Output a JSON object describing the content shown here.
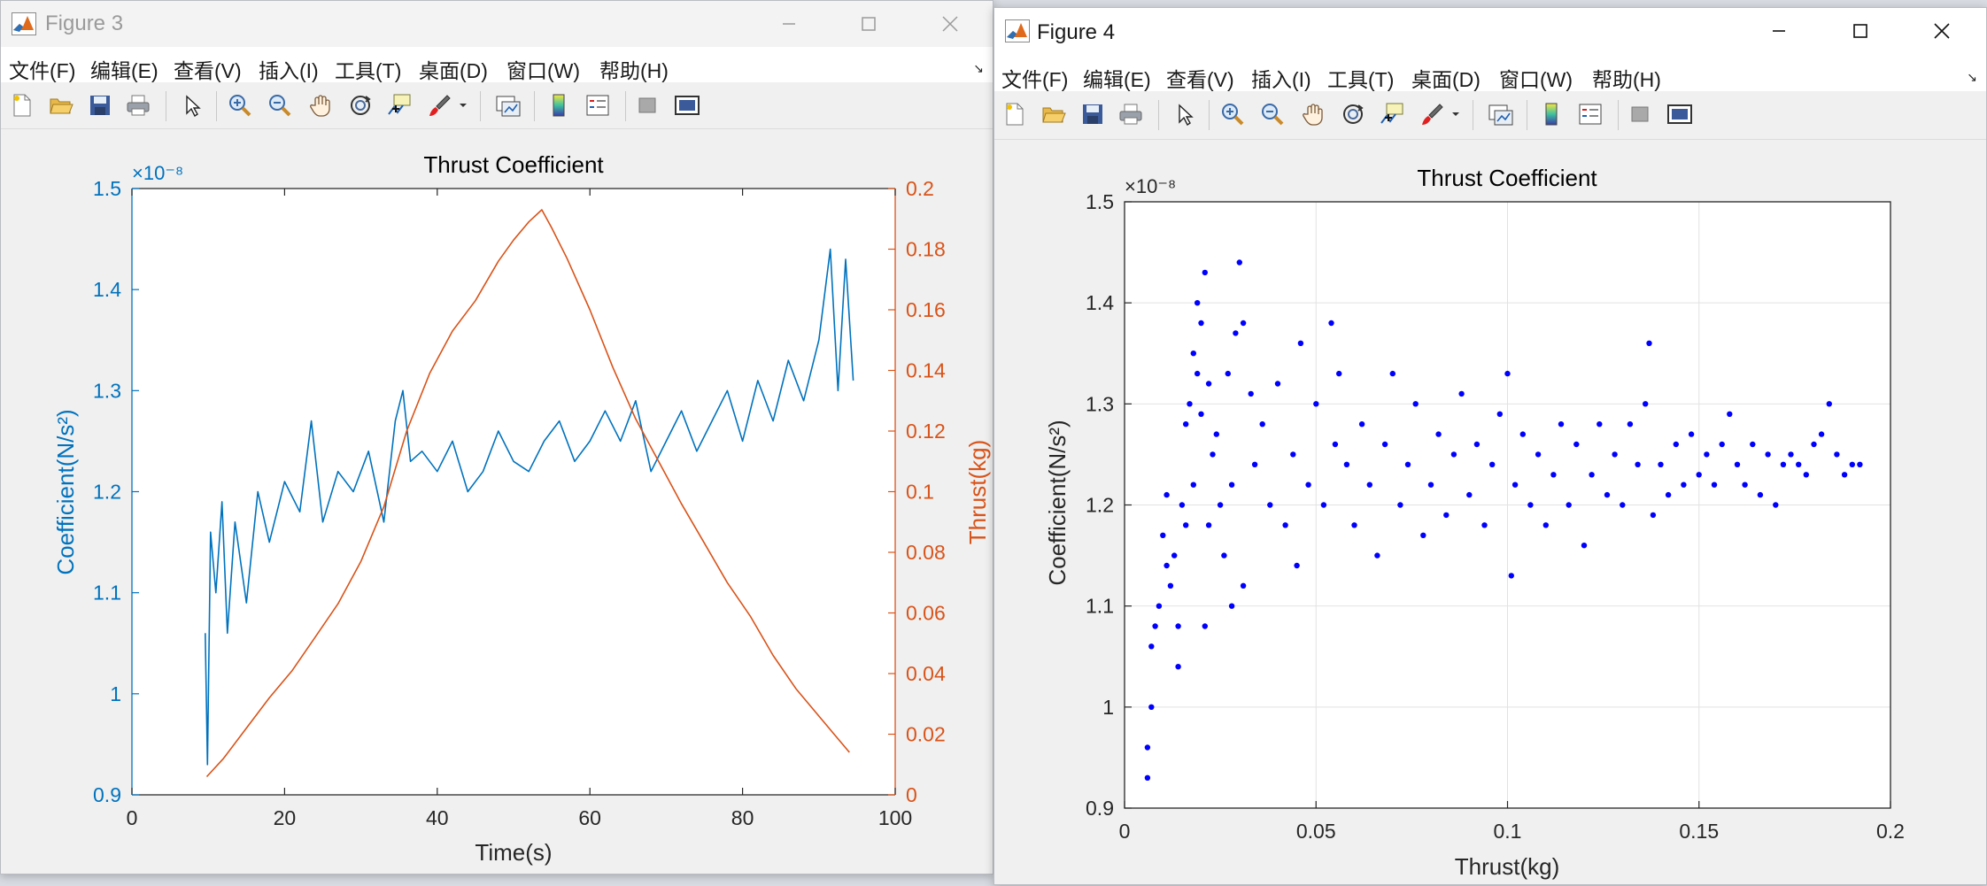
{
  "windows": [
    {
      "title": "Figure 3",
      "menu": [
        "文件(F)",
        "编辑(E)",
        "查看(V)",
        "插入(I)",
        "工具(T)",
        "桌面(D)",
        "窗口(W)",
        "帮助(H)"
      ],
      "toolbar_icons": [
        "new-figure-icon",
        "open-file-icon",
        "save-icon",
        "print-icon",
        "pointer-icon",
        "zoom-in-icon",
        "zoom-out-icon",
        "pan-hand-icon",
        "rotate-3d-icon",
        "data-cursor-icon",
        "brush-icon",
        "link-plot-icon",
        "colorbar-icon",
        "legend-icon",
        "hide-plot-tools-icon",
        "show-plot-tools-icon"
      ],
      "colors": {
        "left_axis": "#0072BD",
        "right_axis": "#D95319"
      }
    },
    {
      "title": "Figure 4",
      "menu": [
        "文件(F)",
        "编辑(E)",
        "查看(V)",
        "插入(I)",
        "工具(T)",
        "桌面(D)",
        "窗口(W)",
        "帮助(H)"
      ],
      "toolbar_icons": [
        "new-figure-icon",
        "open-file-icon",
        "save-icon",
        "print-icon",
        "pointer-icon",
        "zoom-in-icon",
        "zoom-out-icon",
        "pan-hand-icon",
        "rotate-3d-icon",
        "data-cursor-icon",
        "brush-icon",
        "link-plot-icon",
        "colorbar-icon",
        "legend-icon",
        "hide-plot-tools-icon",
        "show-plot-tools-icon"
      ],
      "colors": {
        "markers": "#0000FF"
      }
    }
  ],
  "chart_data": [
    {
      "type": "line",
      "title": "Thrust Coefficient",
      "xlabel": "Time(s)",
      "ylabel_left": "Coefficient(N/s²)",
      "ylabel_right": "Thrust(kg)",
      "exponent_label": "×10⁻⁸",
      "xlim": [
        0,
        100
      ],
      "ylim_left": [
        0.9,
        1.5
      ],
      "ylim_right": [
        0,
        0.2
      ],
      "x_ticks": [
        "0",
        "20",
        "40",
        "60",
        "80",
        "100"
      ],
      "y_ticks_left": [
        "0.9",
        "1",
        "1.1",
        "1.2",
        "1.3",
        "1.4",
        "1.5"
      ],
      "y_ticks_right": [
        "0",
        "0.02",
        "0.04",
        "0.06",
        "0.08",
        "0.1",
        "0.12",
        "0.14",
        "0.16",
        "0.18",
        "0.2"
      ],
      "grid": false,
      "series": [
        {
          "name": "Coefficient(N/s²)",
          "axis": "left",
          "color": "#0072BD",
          "points": [
            [
              9.6,
              1.06
            ],
            [
              9.9,
              0.93
            ],
            [
              10.3,
              1.16
            ],
            [
              11,
              1.1
            ],
            [
              11.8,
              1.19
            ],
            [
              12.5,
              1.06
            ],
            [
              13.5,
              1.17
            ],
            [
              15,
              1.09
            ],
            [
              16.5,
              1.2
            ],
            [
              18,
              1.15
            ],
            [
              20,
              1.21
            ],
            [
              22,
              1.18
            ],
            [
              23.5,
              1.27
            ],
            [
              25,
              1.17
            ],
            [
              27,
              1.22
            ],
            [
              29,
              1.2
            ],
            [
              31,
              1.24
            ],
            [
              33,
              1.17
            ],
            [
              34.5,
              1.27
            ],
            [
              35.5,
              1.3
            ],
            [
              36.5,
              1.23
            ],
            [
              38,
              1.24
            ],
            [
              40,
              1.22
            ],
            [
              42,
              1.25
            ],
            [
              44,
              1.2
            ],
            [
              46,
              1.22
            ],
            [
              48,
              1.26
            ],
            [
              50,
              1.23
            ],
            [
              52,
              1.22
            ],
            [
              54,
              1.25
            ],
            [
              56,
              1.27
            ],
            [
              58,
              1.23
            ],
            [
              60,
              1.25
            ],
            [
              62,
              1.28
            ],
            [
              64,
              1.25
            ],
            [
              66,
              1.29
            ],
            [
              68,
              1.22
            ],
            [
              70,
              1.25
            ],
            [
              72,
              1.28
            ],
            [
              74,
              1.24
            ],
            [
              76,
              1.27
            ],
            [
              78,
              1.3
            ],
            [
              80,
              1.25
            ],
            [
              82,
              1.31
            ],
            [
              84,
              1.27
            ],
            [
              86,
              1.33
            ],
            [
              88,
              1.29
            ],
            [
              90,
              1.35
            ],
            [
              91.5,
              1.44
            ],
            [
              92.5,
              1.3
            ],
            [
              93.5,
              1.43
            ],
            [
              94.5,
              1.31
            ]
          ]
        },
        {
          "name": "Thrust(kg)",
          "axis": "right",
          "color": "#D95319",
          "points": [
            [
              9.8,
              0.006
            ],
            [
              12,
              0.012
            ],
            [
              15,
              0.022
            ],
            [
              18,
              0.032
            ],
            [
              21,
              0.041
            ],
            [
              24,
              0.052
            ],
            [
              27,
              0.063
            ],
            [
              30,
              0.077
            ],
            [
              33,
              0.095
            ],
            [
              36,
              0.12
            ],
            [
              39,
              0.139
            ],
            [
              42,
              0.153
            ],
            [
              45,
              0.163
            ],
            [
              48,
              0.176
            ],
            [
              50,
              0.183
            ],
            [
              52,
              0.189
            ],
            [
              53.7,
              0.193
            ],
            [
              55,
              0.187
            ],
            [
              57,
              0.177
            ],
            [
              60,
              0.16
            ],
            [
              63,
              0.141
            ],
            [
              66,
              0.124
            ],
            [
              69,
              0.11
            ],
            [
              72,
              0.096
            ],
            [
              75,
              0.083
            ],
            [
              78,
              0.07
            ],
            [
              81,
              0.059
            ],
            [
              84,
              0.046
            ],
            [
              87,
              0.035
            ],
            [
              90,
              0.026
            ],
            [
              92,
              0.02
            ],
            [
              94,
              0.014
            ]
          ]
        }
      ]
    },
    {
      "type": "scatter",
      "title": "Thrust Coefficient",
      "xlabel": "Thrust(kg)",
      "ylabel": "Coefficient(N/s²)",
      "exponent_label": "×10⁻⁸",
      "xlim": [
        0,
        0.2
      ],
      "ylim": [
        0.9,
        1.5
      ],
      "x_ticks": [
        "0",
        "0.05",
        "0.1",
        "0.15",
        "0.2"
      ],
      "y_ticks": [
        "0.9",
        "1",
        "1.1",
        "1.2",
        "1.3",
        "1.4",
        "1.5"
      ],
      "grid": true,
      "marker_color": "#0000FF",
      "series": [
        {
          "points": [
            [
              0.006,
              0.93
            ],
            [
              0.006,
              0.96
            ],
            [
              0.007,
              1.0
            ],
            [
              0.007,
              1.06
            ],
            [
              0.008,
              1.08
            ],
            [
              0.009,
              1.1
            ],
            [
              0.01,
              1.17
            ],
            [
              0.011,
              1.21
            ],
            [
              0.011,
              1.14
            ],
            [
              0.012,
              1.12
            ],
            [
              0.013,
              1.15
            ],
            [
              0.014,
              1.04
            ],
            [
              0.014,
              1.08
            ],
            [
              0.015,
              1.2
            ],
            [
              0.016,
              1.28
            ],
            [
              0.016,
              1.18
            ],
            [
              0.017,
              1.3
            ],
            [
              0.018,
              1.35
            ],
            [
              0.018,
              1.22
            ],
            [
              0.019,
              1.4
            ],
            [
              0.019,
              1.33
            ],
            [
              0.02,
              1.38
            ],
            [
              0.02,
              1.29
            ],
            [
              0.021,
              1.43
            ],
            [
              0.021,
              1.08
            ],
            [
              0.022,
              1.32
            ],
            [
              0.022,
              1.18
            ],
            [
              0.023,
              1.25
            ],
            [
              0.024,
              1.27
            ],
            [
              0.025,
              1.2
            ],
            [
              0.026,
              1.15
            ],
            [
              0.027,
              1.33
            ],
            [
              0.028,
              1.22
            ],
            [
              0.028,
              1.1
            ],
            [
              0.029,
              1.37
            ],
            [
              0.03,
              1.44
            ],
            [
              0.031,
              1.38
            ],
            [
              0.031,
              1.12
            ],
            [
              0.033,
              1.31
            ],
            [
              0.034,
              1.24
            ],
            [
              0.036,
              1.28
            ],
            [
              0.038,
              1.2
            ],
            [
              0.04,
              1.32
            ],
            [
              0.042,
              1.18
            ],
            [
              0.044,
              1.25
            ],
            [
              0.045,
              1.14
            ],
            [
              0.046,
              1.36
            ],
            [
              0.048,
              1.22
            ],
            [
              0.05,
              1.3
            ],
            [
              0.052,
              1.2
            ],
            [
              0.054,
              1.38
            ],
            [
              0.055,
              1.26
            ],
            [
              0.056,
              1.33
            ],
            [
              0.058,
              1.24
            ],
            [
              0.06,
              1.18
            ],
            [
              0.062,
              1.28
            ],
            [
              0.064,
              1.22
            ],
            [
              0.066,
              1.15
            ],
            [
              0.068,
              1.26
            ],
            [
              0.07,
              1.33
            ],
            [
              0.072,
              1.2
            ],
            [
              0.074,
              1.24
            ],
            [
              0.076,
              1.3
            ],
            [
              0.078,
              1.17
            ],
            [
              0.08,
              1.22
            ],
            [
              0.082,
              1.27
            ],
            [
              0.084,
              1.19
            ],
            [
              0.086,
              1.25
            ],
            [
              0.088,
              1.31
            ],
            [
              0.09,
              1.21
            ],
            [
              0.092,
              1.26
            ],
            [
              0.094,
              1.18
            ],
            [
              0.096,
              1.24
            ],
            [
              0.098,
              1.29
            ],
            [
              0.1,
              1.33
            ],
            [
              0.101,
              1.13
            ],
            [
              0.102,
              1.22
            ],
            [
              0.104,
              1.27
            ],
            [
              0.106,
              1.2
            ],
            [
              0.108,
              1.25
            ],
            [
              0.11,
              1.18
            ],
            [
              0.112,
              1.23
            ],
            [
              0.114,
              1.28
            ],
            [
              0.116,
              1.2
            ],
            [
              0.118,
              1.26
            ],
            [
              0.12,
              1.16
            ],
            [
              0.122,
              1.23
            ],
            [
              0.124,
              1.28
            ],
            [
              0.126,
              1.21
            ],
            [
              0.128,
              1.25
            ],
            [
              0.13,
              1.2
            ],
            [
              0.132,
              1.28
            ],
            [
              0.134,
              1.24
            ],
            [
              0.136,
              1.3
            ],
            [
              0.137,
              1.36
            ],
            [
              0.138,
              1.19
            ],
            [
              0.14,
              1.24
            ],
            [
              0.142,
              1.21
            ],
            [
              0.144,
              1.26
            ],
            [
              0.146,
              1.22
            ],
            [
              0.148,
              1.27
            ],
            [
              0.15,
              1.23
            ],
            [
              0.152,
              1.25
            ],
            [
              0.154,
              1.22
            ],
            [
              0.156,
              1.26
            ],
            [
              0.158,
              1.29
            ],
            [
              0.16,
              1.24
            ],
            [
              0.162,
              1.22
            ],
            [
              0.164,
              1.26
            ],
            [
              0.166,
              1.21
            ],
            [
              0.168,
              1.25
            ],
            [
              0.17,
              1.2
            ],
            [
              0.172,
              1.24
            ],
            [
              0.174,
              1.25
            ],
            [
              0.176,
              1.24
            ],
            [
              0.178,
              1.23
            ],
            [
              0.18,
              1.26
            ],
            [
              0.182,
              1.27
            ],
            [
              0.184,
              1.3
            ],
            [
              0.186,
              1.25
            ],
            [
              0.188,
              1.23
            ],
            [
              0.19,
              1.24
            ],
            [
              0.192,
              1.24
            ]
          ]
        }
      ]
    }
  ]
}
